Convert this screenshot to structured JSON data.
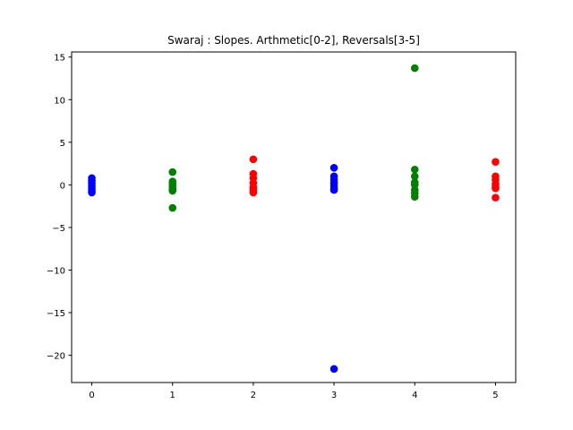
{
  "chart_data": {
    "type": "scatter",
    "title": "Swaraj : Slopes. Arthmetic[0-2], Reversals[3-5]",
    "xlabel": "",
    "ylabel": "",
    "xlim": [
      -0.25,
      5.25
    ],
    "ylim": [
      -23.2,
      15.6
    ],
    "xticks": [
      0,
      1,
      2,
      3,
      4,
      5
    ],
    "yticks": [
      15,
      10,
      5,
      0,
      -5,
      -10,
      -15,
      -20
    ],
    "ytick_labels": [
      "15",
      "10",
      "5",
      "0",
      "−5",
      "−10",
      "−15",
      "−20"
    ],
    "grid": false,
    "legend": "none",
    "series": [
      {
        "color": "#0000ff",
        "x": 0,
        "values": [
          0.8,
          0.5,
          0.2,
          -0.1,
          -0.4,
          -0.7,
          -0.9
        ]
      },
      {
        "color": "#008000",
        "x": 1,
        "values": [
          1.5,
          0.4,
          0.1,
          -0.2,
          -0.5,
          -0.7,
          -2.7
        ]
      },
      {
        "color": "#ff0000",
        "x": 2,
        "values": [
          3.0,
          1.3,
          0.8,
          0.2,
          -0.3,
          -0.6,
          -0.9
        ]
      },
      {
        "color": "#0000ff",
        "x": 3,
        "values": [
          2.0,
          1.0,
          0.6,
          0.2,
          -0.1,
          -0.4,
          -0.6,
          -21.6
        ]
      },
      {
        "color": "#008000",
        "x": 4,
        "values": [
          13.7,
          1.8,
          1.0,
          0.3,
          0.0,
          -0.6,
          -1.0,
          -1.4
        ]
      },
      {
        "color": "#ff0000",
        "x": 5,
        "values": [
          2.7,
          1.0,
          0.6,
          0.1,
          -0.2,
          -0.4,
          -1.5
        ]
      }
    ]
  }
}
